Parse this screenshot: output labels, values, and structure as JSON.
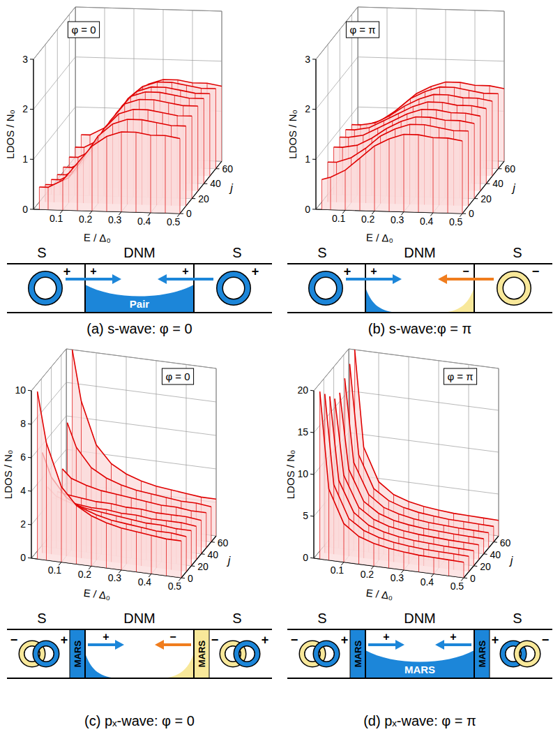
{
  "chart_data": [
    {
      "type": "surface",
      "annotation": "φ = 0",
      "x_label": "E / Δ₀",
      "y_label": "j",
      "z_label": "LDOS / N₀",
      "color": "#e00000",
      "grid": true,
      "x": [
        0.02,
        0.05,
        0.1,
        0.15,
        0.2,
        0.25,
        0.3,
        0.35,
        0.4,
        0.45,
        0.5
      ],
      "y": [
        0,
        10,
        20,
        30,
        40,
        50,
        60,
        70
      ],
      "z": [
        [
          0.45,
          0.45,
          0.6,
          0.95,
          1.3,
          1.5,
          1.6,
          1.6,
          1.55,
          1.55,
          1.5
        ],
        [
          0.35,
          0.35,
          0.5,
          0.9,
          1.35,
          1.6,
          1.7,
          1.7,
          1.65,
          1.6,
          1.6
        ],
        [
          0.3,
          0.3,
          0.45,
          0.85,
          1.35,
          1.65,
          1.75,
          1.75,
          1.7,
          1.65,
          1.65
        ],
        [
          0.25,
          0.25,
          0.4,
          0.8,
          1.35,
          1.7,
          1.8,
          1.8,
          1.75,
          1.7,
          1.7
        ],
        [
          0.25,
          0.25,
          0.4,
          0.8,
          1.35,
          1.7,
          1.8,
          1.8,
          1.75,
          1.7,
          1.7
        ],
        [
          0.3,
          0.3,
          0.45,
          0.85,
          1.35,
          1.65,
          1.75,
          1.75,
          1.7,
          1.65,
          1.65
        ],
        [
          0.35,
          0.35,
          0.5,
          0.9,
          1.35,
          1.6,
          1.7,
          1.7,
          1.65,
          1.6,
          1.6
        ],
        [
          0.45,
          0.45,
          0.6,
          0.95,
          1.3,
          1.5,
          1.6,
          1.6,
          1.55,
          1.55,
          1.5
        ]
      ],
      "xlim": [
        0,
        0.5
      ],
      "ylim": [
        0,
        70
      ],
      "zlim": [
        0,
        3
      ],
      "xticks": [
        0.1,
        0.2,
        0.3,
        0.4,
        0.5
      ],
      "yticks": [
        0,
        20,
        40,
        60
      ],
      "zticks": [
        0,
        1,
        2,
        3
      ]
    },
    {
      "type": "surface",
      "annotation": "φ = π",
      "x_label": "E / Δ₀",
      "y_label": "j",
      "z_label": "LDOS / N₀",
      "color": "#e00000",
      "grid": true,
      "x": [
        0.02,
        0.05,
        0.1,
        0.15,
        0.2,
        0.25,
        0.3,
        0.35,
        0.4,
        0.45,
        0.5
      ],
      "y": [
        0,
        10,
        20,
        30,
        40,
        50,
        60,
        70
      ],
      "z": [
        [
          0.6,
          0.65,
          0.8,
          1.05,
          1.3,
          1.45,
          1.55,
          1.55,
          1.5,
          1.5,
          1.45
        ],
        [
          0.8,
          0.8,
          0.9,
          1.1,
          1.35,
          1.5,
          1.6,
          1.6,
          1.55,
          1.5,
          1.5
        ],
        [
          0.95,
          0.95,
          1.0,
          1.15,
          1.35,
          1.5,
          1.6,
          1.6,
          1.55,
          1.55,
          1.5
        ],
        [
          1.0,
          1.0,
          1.05,
          1.2,
          1.35,
          1.5,
          1.6,
          1.6,
          1.55,
          1.55,
          1.5
        ],
        [
          1.0,
          1.0,
          1.05,
          1.2,
          1.35,
          1.5,
          1.6,
          1.6,
          1.55,
          1.55,
          1.5
        ],
        [
          0.95,
          0.95,
          1.0,
          1.15,
          1.35,
          1.5,
          1.6,
          1.6,
          1.55,
          1.55,
          1.5
        ],
        [
          0.8,
          0.8,
          0.9,
          1.1,
          1.35,
          1.5,
          1.6,
          1.6,
          1.55,
          1.5,
          1.5
        ],
        [
          0.6,
          0.65,
          0.8,
          1.05,
          1.3,
          1.45,
          1.55,
          1.55,
          1.5,
          1.5,
          1.45
        ]
      ],
      "xlim": [
        0,
        0.5
      ],
      "ylim": [
        0,
        70
      ],
      "zlim": [
        0,
        3
      ],
      "xticks": [
        0.1,
        0.2,
        0.3,
        0.4,
        0.5
      ],
      "yticks": [
        0,
        20,
        40,
        60
      ],
      "zticks": [
        0,
        1,
        2,
        3
      ]
    },
    {
      "type": "surface",
      "annotation": "φ = 0",
      "x_label": "E / Δ₀",
      "y_label": "j",
      "z_label": "LDOS / N₀",
      "color": "#e00000",
      "grid": true,
      "x": [
        0.02,
        0.05,
        0.1,
        0.15,
        0.2,
        0.25,
        0.3,
        0.35,
        0.4,
        0.45,
        0.5
      ],
      "y": [
        0,
        10,
        20,
        30,
        40,
        50,
        60,
        70
      ],
      "z": [
        [
          10,
          7,
          4.5,
          3.5,
          3,
          2.7,
          2.5,
          2.4,
          2.3,
          2.2,
          2.2
        ],
        [
          6,
          4.6,
          3.5,
          3,
          2.7,
          2.5,
          2.4,
          2.3,
          2.2,
          2.2,
          2.1
        ],
        [
          3.6,
          3.1,
          2.8,
          2.6,
          2.5,
          2.4,
          2.3,
          2.2,
          2.2,
          2.1,
          2.1
        ],
        [
          2.6,
          2.5,
          2.4,
          2.3,
          2.3,
          2.2,
          2.2,
          2.1,
          2.1,
          2.1,
          2.0
        ],
        [
          2.6,
          2.5,
          2.4,
          2.3,
          2.3,
          2.2,
          2.2,
          2.1,
          2.1,
          2.1,
          2.0
        ],
        [
          3.6,
          3.1,
          2.8,
          2.6,
          2.5,
          2.4,
          2.3,
          2.2,
          2.2,
          2.1,
          2.1
        ],
        [
          6,
          4.6,
          3.5,
          3,
          2.7,
          2.5,
          2.4,
          2.3,
          2.2,
          2.2,
          2.1
        ],
        [
          10,
          7,
          4.5,
          3.5,
          3,
          2.7,
          2.5,
          2.4,
          2.3,
          2.2,
          2.2
        ]
      ],
      "xlim": [
        0,
        0.5
      ],
      "ylim": [
        0,
        70
      ],
      "zlim": [
        0,
        10
      ],
      "xticks": [
        0.1,
        0.2,
        0.3,
        0.4,
        0.5
      ],
      "yticks": [
        0,
        20,
        40,
        60
      ],
      "zticks": [
        0,
        2,
        4,
        6,
        8,
        10
      ]
    },
    {
      "type": "surface",
      "annotation": "φ = π",
      "x_label": "E / Δ₀",
      "y_label": "j",
      "z_label": "LDOS / N₀",
      "color": "#e00000",
      "grid": true,
      "x": [
        0.02,
        0.05,
        0.1,
        0.15,
        0.2,
        0.25,
        0.3,
        0.35,
        0.4,
        0.45,
        0.5
      ],
      "y": [
        0,
        10,
        20,
        30,
        40,
        50,
        60,
        70
      ],
      "z": [
        [
          20,
          8.5,
          4.6,
          3.3,
          2.7,
          2.35,
          2.15,
          2.0,
          1.95,
          1.9,
          1.85
        ],
        [
          19,
          8.3,
          4.5,
          3.3,
          2.7,
          2.35,
          2.15,
          2.0,
          1.95,
          1.9,
          1.85
        ],
        [
          18,
          8.1,
          4.5,
          3.2,
          2.65,
          2.3,
          2.1,
          2.0,
          1.9,
          1.85,
          1.8
        ],
        [
          17,
          8,
          4.4,
          3.2,
          2.6,
          2.3,
          2.1,
          2.0,
          1.9,
          1.85,
          1.8
        ],
        [
          17,
          8,
          4.4,
          3.2,
          2.6,
          2.3,
          2.1,
          2.0,
          1.9,
          1.85,
          1.8
        ],
        [
          18,
          8.1,
          4.5,
          3.2,
          2.65,
          2.3,
          2.1,
          2.0,
          1.9,
          1.85,
          1.8
        ],
        [
          19,
          8.3,
          4.5,
          3.3,
          2.7,
          2.35,
          2.15,
          2.0,
          1.95,
          1.9,
          1.85
        ],
        [
          20,
          8.5,
          4.6,
          3.3,
          2.7,
          2.35,
          2.15,
          2.0,
          1.95,
          1.9,
          1.85
        ]
      ],
      "xlim": [
        0,
        0.5
      ],
      "ylim": [
        0,
        70
      ],
      "zlim": [
        0,
        20
      ],
      "xticks": [
        0.1,
        0.2,
        0.3,
        0.4,
        0.5
      ],
      "yticks": [
        0,
        20,
        40,
        60
      ],
      "zticks": [
        0,
        5,
        10,
        15,
        20
      ]
    }
  ],
  "diagrams": [
    {
      "labels": [
        "S",
        "DNM",
        "S"
      ],
      "left_signs": [
        "+"
      ],
      "arrow_signs": [
        "+",
        "+"
      ],
      "right_signs": [
        "+"
      ],
      "center_label": "Pair",
      "caption": "(a) s-wave: φ = 0"
    },
    {
      "labels": [
        "S",
        "DNM",
        "S"
      ],
      "left_signs": [
        "+"
      ],
      "arrow_signs": [
        "+",
        "−"
      ],
      "right_signs": [
        "−"
      ],
      "caption": "(b) s-wave:φ = π"
    },
    {
      "labels": [
        "S",
        "DNM",
        "S"
      ],
      "left_signs": [
        "−",
        "+"
      ],
      "arrow_signs": [
        "+",
        "−"
      ],
      "right_signs": [
        "−",
        "+"
      ],
      "interface_labels": [
        "MARS",
        "MARS"
      ],
      "caption": "(c) pₓ-wave: φ = 0"
    },
    {
      "labels": [
        "S",
        "DNM",
        "S"
      ],
      "left_signs": [
        "−",
        "+"
      ],
      "arrow_signs": [
        "+",
        "+"
      ],
      "right_signs": [
        "+",
        "−"
      ],
      "interface_labels": [
        "MARS",
        "MARS"
      ],
      "center_label": "MARS",
      "caption": "(d) pₓ-wave: φ = π"
    }
  ]
}
